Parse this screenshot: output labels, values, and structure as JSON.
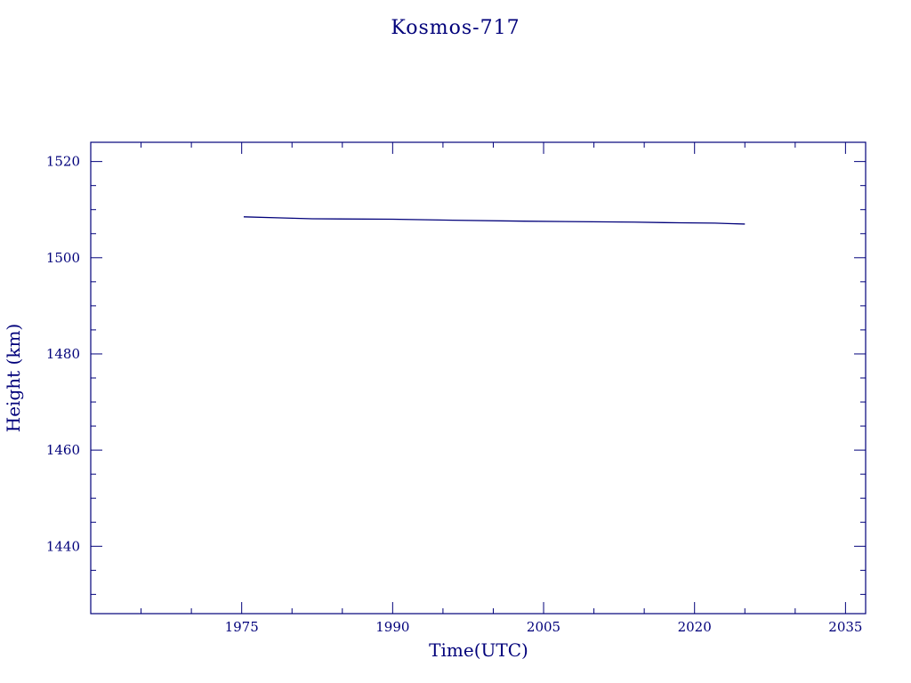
{
  "chart_data": {
    "type": "line",
    "title": "Kosmos-717",
    "xlabel": "Time(UTC)",
    "ylabel": "Height (km)",
    "xlim": [
      1960,
      2037
    ],
    "ylim": [
      1426,
      1524
    ],
    "x_ticks": [
      1975,
      1990,
      2005,
      2020,
      2035
    ],
    "x_tick_labels": [
      "1975",
      "1990",
      "2005",
      "2020",
      "2035"
    ],
    "x_minor_step": 5,
    "y_ticks": [
      1440,
      1460,
      1480,
      1500,
      1520
    ],
    "y_tick_labels": [
      "1440",
      "1460",
      "1480",
      "1500",
      "1520"
    ],
    "y_minor_step": 5,
    "grid": false,
    "line_color": "#00007a",
    "series": [
      {
        "x": [
          1975.2,
          1978.5,
          1982.0,
          1990.0,
          1996.0,
          2003.0,
          2014.0,
          2017.0,
          2022.0,
          2023.3,
          2025.0
        ],
        "y": [
          1508.5,
          1508.3,
          1508.1,
          1508.0,
          1507.8,
          1507.6,
          1507.4,
          1507.3,
          1507.2,
          1507.1,
          1507.0
        ]
      }
    ]
  }
}
